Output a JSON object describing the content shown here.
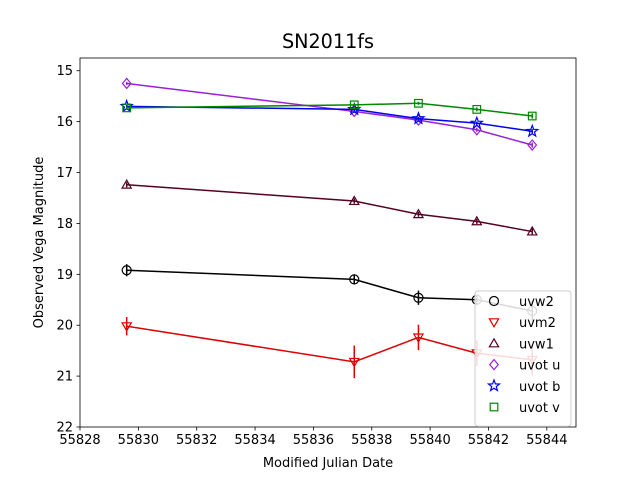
{
  "chart_data": {
    "type": "line",
    "title": "SN2011fs",
    "xlabel": "Modified Julian Date",
    "ylabel": "Observed Vega Magnitude",
    "xlim": [
      55828,
      55845
    ],
    "ylim": [
      22,
      14.75
    ],
    "y_inverted": true,
    "xticks": [
      55828,
      55830,
      55832,
      55834,
      55836,
      55838,
      55840,
      55842,
      55844
    ],
    "yticks": [
      15,
      16,
      17,
      18,
      19,
      20,
      21,
      22
    ],
    "grid": false,
    "legend": "lower-right",
    "series": [
      {
        "name": "uvw2",
        "color": "#000000",
        "marker": "circle",
        "x": [
          55829.6,
          55837.4,
          55839.6,
          55841.6,
          55843.5
        ],
        "y": [
          18.92,
          19.1,
          19.46,
          19.5,
          19.72
        ],
        "yerr": [
          0.12,
          0.1,
          0.14,
          0.1,
          0.2
        ]
      },
      {
        "name": "uvm2",
        "color": "#dd0000",
        "marker": "triangle-down",
        "x": [
          55829.6,
          55837.4,
          55839.6,
          55841.6,
          55843.5
        ],
        "y": [
          20.02,
          20.72,
          20.24,
          20.55,
          20.68
        ],
        "yerr": [
          0.18,
          0.32,
          0.25,
          0.25,
          0.3
        ]
      },
      {
        "name": "uvw1",
        "color": "#550022",
        "marker": "triangle-up",
        "x": [
          55829.6,
          55837.4,
          55839.6,
          55841.6,
          55843.5
        ],
        "y": [
          17.24,
          17.56,
          17.82,
          17.96,
          18.16
        ],
        "yerr": [
          0.05,
          0.05,
          0.05,
          0.05,
          0.06
        ]
      },
      {
        "name": "uvot u",
        "color": "#9a1fd8",
        "marker": "diamond",
        "x": [
          55829.6,
          55837.4,
          55839.6,
          55841.6,
          55843.5
        ],
        "y": [
          15.25,
          15.8,
          15.97,
          16.16,
          16.46
        ],
        "yerr": [
          0.03,
          0.03,
          0.03,
          0.04,
          0.05
        ]
      },
      {
        "name": "uvot b",
        "color": "#0000ee",
        "marker": "star",
        "x": [
          55829.6,
          55837.4,
          55839.6,
          55841.6,
          55843.5
        ],
        "y": [
          15.7,
          15.76,
          15.94,
          16.03,
          16.19
        ],
        "yerr": [
          0.03,
          0.03,
          0.03,
          0.03,
          0.04
        ]
      },
      {
        "name": "uvot v",
        "color": "#008800",
        "marker": "square",
        "x": [
          55829.6,
          55837.4,
          55839.6,
          55841.6,
          55843.5
        ],
        "y": [
          15.73,
          15.67,
          15.64,
          15.76,
          15.89
        ],
        "yerr": [
          0.03,
          0.03,
          0.03,
          0.04,
          0.05
        ]
      }
    ]
  }
}
